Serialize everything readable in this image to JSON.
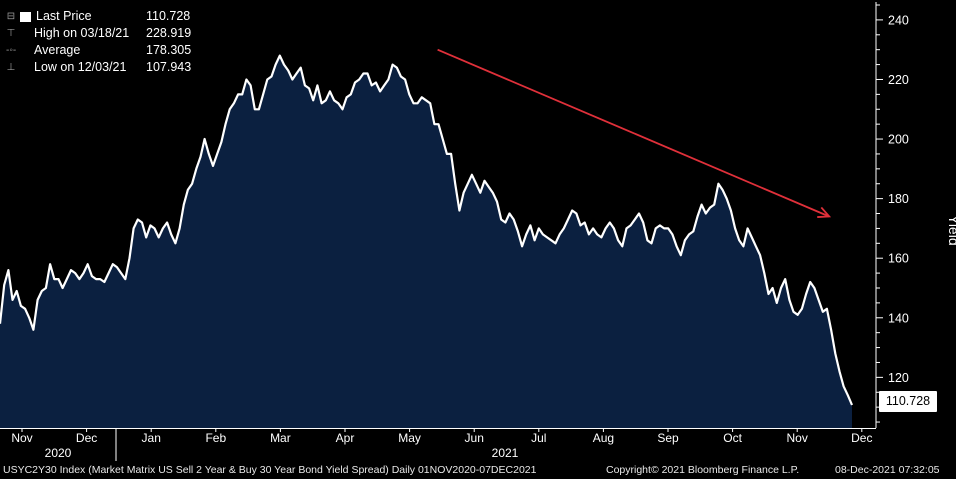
{
  "legend": {
    "last_price_label": "Last Price",
    "last_price_value": "110.728",
    "high_label": "High on 03/18/21",
    "high_value": "228.919",
    "average_label": "Average",
    "average_value": "178.305",
    "low_label": "Low on 12/03/21",
    "low_value": "107.943"
  },
  "last_value_tag": "110.728",
  "y_axis_title": "Yield",
  "footer": {
    "description": "USYC2Y30 Index (Market Matrix US Sell 2 Year & Buy 30 Year Bond Yield Spread)  Daily 01NOV2020-07DEC2021",
    "copyright": "Copyright© 2021 Bloomberg Finance L.P.",
    "timestamp": "08-Dec-2021 07:32:05"
  },
  "colors": {
    "background": "#000000",
    "area_fill": "#0b2040",
    "line": "#ffffff",
    "trend_arrow": "#e0303a"
  },
  "chart_data": {
    "type": "area",
    "ylabel": "Yield",
    "ylim": [
      103,
      245
    ],
    "y_ticks": [
      120,
      140,
      160,
      180,
      200,
      220,
      240
    ],
    "x_month_labels": [
      "Nov",
      "Dec",
      "Jan",
      "Feb",
      "Mar",
      "Apr",
      "May",
      "Jun",
      "Jul",
      "Aug",
      "Sep",
      "Oct",
      "Nov",
      "Dec"
    ],
    "x_year_labels": [
      "2020",
      "2021"
    ],
    "grid": false,
    "legend_position": "top-left",
    "series": [
      {
        "values": [
          138,
          151,
          156,
          146,
          149,
          144,
          143,
          140,
          136,
          146,
          149,
          150,
          158,
          153,
          153,
          150,
          153,
          156,
          155,
          153,
          155,
          158,
          154,
          153,
          153,
          152,
          155,
          158,
          157,
          155,
          153,
          160,
          170,
          173,
          172,
          167,
          171,
          170,
          167,
          170,
          172,
          168,
          165,
          170,
          178,
          183,
          185,
          190,
          194,
          200,
          195,
          191,
          195,
          199,
          205,
          210,
          212,
          215,
          215,
          220,
          218,
          210,
          210,
          215,
          220,
          221,
          225,
          228,
          225,
          223,
          220,
          222,
          224,
          218,
          217,
          213,
          218,
          212,
          213,
          216,
          213,
          212,
          210,
          214,
          215,
          219,
          220,
          222,
          222,
          218,
          219,
          216,
          218,
          220,
          225,
          224,
          221,
          220,
          215,
          212,
          212,
          214,
          213,
          212,
          205,
          205,
          200,
          195,
          195,
          185,
          176,
          182,
          185,
          188,
          185,
          182,
          186,
          184,
          182,
          179,
          173,
          172,
          175,
          173,
          169,
          164,
          168,
          171,
          166,
          170,
          168,
          167,
          166,
          165,
          168,
          170,
          173,
          176,
          175,
          171,
          172,
          168,
          170,
          168,
          167,
          170,
          172,
          170,
          166,
          164,
          170,
          171,
          173,
          175,
          172,
          166,
          165,
          170,
          171,
          170,
          170,
          168,
          164,
          161,
          166,
          168,
          169,
          174,
          178,
          175,
          177,
          178,
          185,
          183,
          180,
          176,
          170,
          166,
          164,
          170,
          167,
          164,
          161,
          155,
          148,
          150,
          145,
          150,
          153,
          146,
          142,
          141,
          143,
          148,
          152,
          150,
          146,
          142,
          143,
          136,
          128,
          122,
          117,
          114,
          110.728
        ]
      }
    ],
    "last_value": 110.728,
    "high": {
      "date": "03/18/21",
      "value": 228.919
    },
    "low": {
      "date": "12/03/21",
      "value": 107.943
    },
    "average": 178.305,
    "trend_arrow": {
      "from": {
        "month": "May",
        "value": 230
      },
      "to": {
        "month": "Nov",
        "value": 174
      }
    }
  }
}
